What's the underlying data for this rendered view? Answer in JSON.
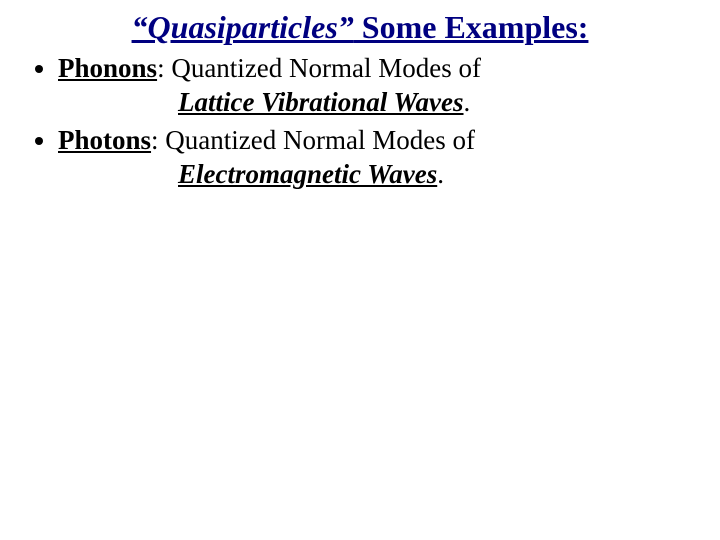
{
  "title": {
    "quoted_italic": "“Quasiparticles”",
    "rest": " Some Examples:"
  },
  "items": [
    {
      "term": "Phonons",
      "colon": ":  ",
      "def": "Quantized Normal Modes of",
      "emph": "Lattice Vibrational Waves",
      "period": "."
    },
    {
      "term": "Photons",
      "colon": ": ",
      "def": "Quantized Normal Modes of",
      "emph": "Electromagnetic Waves",
      "period": "."
    }
  ]
}
